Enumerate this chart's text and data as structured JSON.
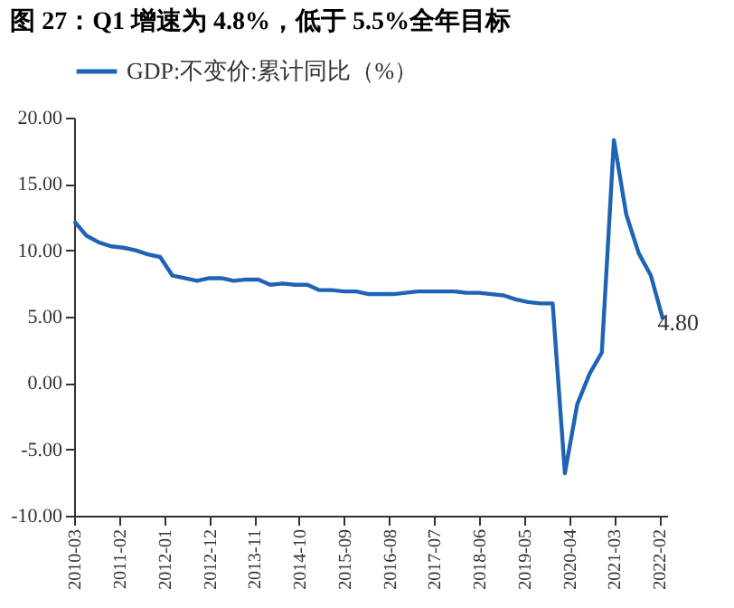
{
  "chart_data": {
    "type": "line",
    "title": "图 27：Q1 增速为 4.8%，低于 5.5%全年目标",
    "x": [
      "2010-03",
      "2010-06",
      "2010-09",
      "2010-12",
      "2011-03",
      "2011-06",
      "2011-09",
      "2011-12",
      "2012-03",
      "2012-06",
      "2012-09",
      "2012-12",
      "2013-03",
      "2013-06",
      "2013-09",
      "2013-12",
      "2014-03",
      "2014-06",
      "2014-09",
      "2014-12",
      "2015-03",
      "2015-06",
      "2015-09",
      "2015-12",
      "2016-03",
      "2016-06",
      "2016-09",
      "2016-12",
      "2017-03",
      "2017-06",
      "2017-09",
      "2017-12",
      "2018-03",
      "2018-06",
      "2018-09",
      "2018-12",
      "2019-03",
      "2019-06",
      "2019-09",
      "2019-12",
      "2020-03",
      "2020-06",
      "2020-09",
      "2020-12",
      "2021-03",
      "2021-06",
      "2021-09",
      "2021-12",
      "2022-03"
    ],
    "series": [
      {
        "name": "GDP:不变价:累计同比（%）",
        "color": "#1f64b4",
        "values": [
          12.2,
          11.1,
          10.6,
          10.3,
          10.2,
          10.0,
          9.7,
          9.5,
          8.1,
          7.9,
          7.7,
          7.9,
          7.9,
          7.7,
          7.8,
          7.8,
          7.4,
          7.5,
          7.4,
          7.4,
          7.0,
          7.0,
          6.9,
          6.9,
          6.7,
          6.7,
          6.7,
          6.8,
          6.9,
          6.9,
          6.9,
          6.9,
          6.8,
          6.8,
          6.7,
          6.6,
          6.3,
          6.1,
          6.0,
          6.0,
          -6.8,
          -1.6,
          0.7,
          2.3,
          18.3,
          12.7,
          9.8,
          8.1,
          4.8
        ],
        "value_labels": [
          null,
          null,
          null,
          null,
          null,
          null,
          null,
          null,
          null,
          null,
          null,
          null,
          null,
          null,
          null,
          null,
          null,
          null,
          null,
          null,
          null,
          null,
          null,
          null,
          null,
          null,
          null,
          null,
          null,
          null,
          null,
          null,
          null,
          null,
          null,
          null,
          null,
          null,
          null,
          null,
          null,
          null,
          null,
          null,
          null,
          null,
          null,
          null,
          "4.80"
        ]
      }
    ],
    "xlim": [
      "2010-03",
      "2022-04"
    ],
    "xticks": [
      "2010-03",
      "2011-02",
      "2012-01",
      "2012-12",
      "2013-11",
      "2014-10",
      "2015-09",
      "2016-08",
      "2017-07",
      "2018-06",
      "2019-05",
      "2020-04",
      "2021-03",
      "2022-02"
    ],
    "ylim": [
      -10,
      20
    ],
    "yticks": [
      {
        "value": -10,
        "label": "-10.00"
      },
      {
        "value": -5,
        "label": "-5.00"
      },
      {
        "value": 0,
        "label": "0.00"
      },
      {
        "value": 5,
        "label": "5.00"
      },
      {
        "value": 10,
        "label": "10.00"
      },
      {
        "value": 15,
        "label": "15.00"
      },
      {
        "value": 20,
        "label": "20.00"
      }
    ],
    "grid": false,
    "legend": "top",
    "marker": "none",
    "line_style": "solid"
  }
}
